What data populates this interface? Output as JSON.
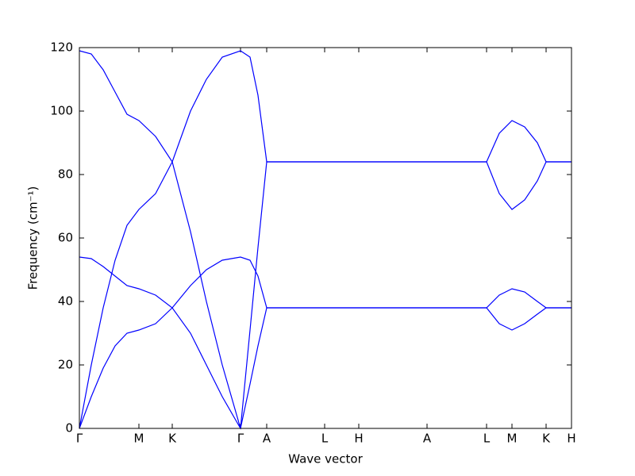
{
  "chart_data": {
    "type": "line",
    "xlabel": "Wave vector",
    "ylabel": "Frequency (cm⁻¹)",
    "x": [
      0,
      15,
      30,
      45,
      60,
      75,
      96,
      117,
      140,
      160,
      180,
      203,
      215,
      225,
      236,
      513,
      529,
      545,
      561,
      577,
      588,
      620
    ],
    "series": [
      {
        "color": "#0000ff",
        "values": [
          0,
          10,
          19,
          26,
          30,
          31,
          33,
          38,
          45,
          50,
          53,
          54,
          53,
          48,
          38,
          38,
          33,
          31,
          33,
          36,
          38,
          38
        ]
      },
      {
        "color": "#0000ff",
        "values": [
          54,
          53.5,
          51,
          48,
          45,
          44,
          42,
          38,
          30,
          20,
          10,
          0,
          14,
          26,
          38,
          38,
          42,
          44,
          43,
          40,
          38,
          38
        ]
      },
      {
        "color": "#0000ff",
        "values": [
          0,
          20,
          38,
          53,
          64,
          69,
          74,
          84,
          100,
          110,
          117,
          119,
          117,
          105,
          84,
          84,
          74,
          69,
          72,
          78,
          84,
          84
        ]
      },
      {
        "color": "#0000ff",
        "values": [
          119,
          118,
          113,
          106,
          99,
          97,
          92,
          84,
          62,
          40,
          20,
          0,
          31,
          57,
          84,
          84,
          93,
          97,
          95,
          90,
          84,
          84
        ]
      }
    ],
    "xlim": [
      0,
      620
    ],
    "xticks": [
      {
        "value": 0,
        "label": "Γ"
      },
      {
        "value": 75,
        "label": "M"
      },
      {
        "value": 117,
        "label": "K"
      },
      {
        "value": 203,
        "label": "Γ"
      },
      {
        "value": 236,
        "label": "A"
      },
      {
        "value": 309,
        "label": "L"
      },
      {
        "value": 352,
        "label": "H"
      },
      {
        "value": 438,
        "label": "A"
      },
      {
        "value": 513,
        "label": "L"
      },
      {
        "value": 545,
        "label": "M"
      },
      {
        "value": 588,
        "label": "K"
      },
      {
        "value": 620,
        "label": "H"
      }
    ],
    "ylim": [
      0,
      120
    ],
    "yticks": [
      0,
      20,
      40,
      60,
      80,
      100,
      120
    ]
  }
}
